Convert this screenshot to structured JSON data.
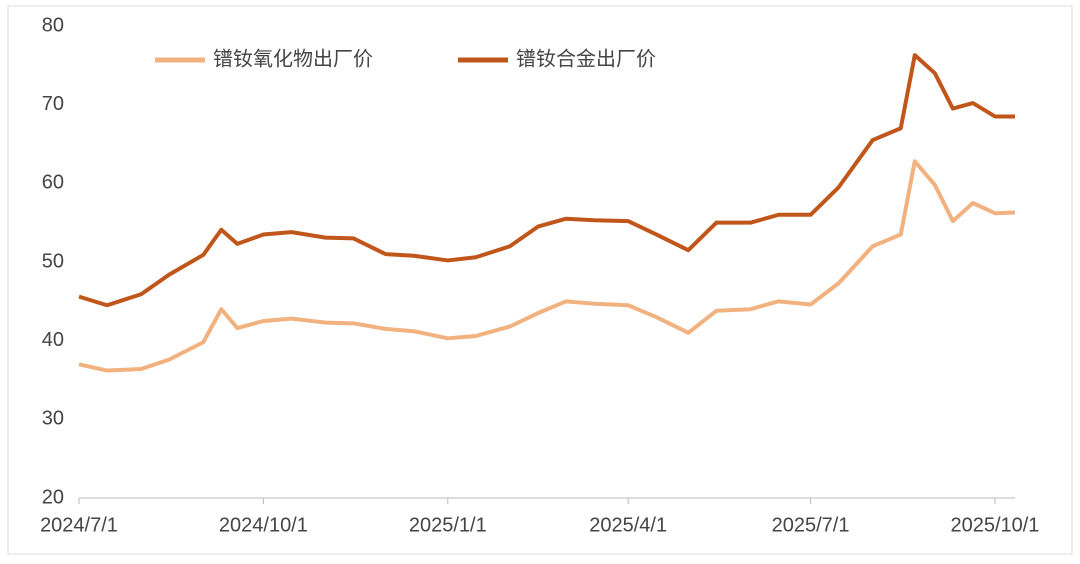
{
  "chart_data": {
    "type": "line",
    "x": [
      "2024/7/1",
      "2024/7/15",
      "2024/8/1",
      "2024/8/15",
      "2024/9/1",
      "2024/9/10",
      "2024/9/18",
      "2024/10/1",
      "2024/10/15",
      "2024/11/1",
      "2024/11/15",
      "2024/12/1",
      "2024/12/15",
      "2025/1/1",
      "2025/1/15",
      "2025/2/1",
      "2025/2/15",
      "2025/3/1",
      "2025/3/15",
      "2025/4/1",
      "2025/4/15",
      "2025/5/1",
      "2025/5/15",
      "2025/6/1",
      "2025/6/15",
      "2025/7/1",
      "2025/7/15",
      "2025/8/1",
      "2025/8/15",
      "2025/8/22",
      "2025/9/1",
      "2025/9/10",
      "2025/9/20",
      "2025/10/1",
      "2025/10/11"
    ],
    "series": [
      {
        "name": "镨钕氧化物出厂价",
        "color": "#f2b27f",
        "values": [
          37,
          36.2,
          36.4,
          37.6,
          39.8,
          44,
          41.6,
          42.5,
          42.8,
          42.3,
          42.2,
          41.5,
          41.2,
          40.3,
          40.6,
          41.8,
          43.5,
          45,
          44.7,
          44.5,
          43,
          41,
          43.8,
          44,
          45,
          44.6,
          47.3,
          52,
          53.5,
          62.8,
          59.8,
          55.2,
          57.5,
          56.2,
          56.3
        ]
      },
      {
        "name": "镨钕合金出厂价",
        "color": "#c0561a",
        "values": [
          45.6,
          44.5,
          45.9,
          48.4,
          50.9,
          54.1,
          52.3,
          53.5,
          53.8,
          53.1,
          53,
          51,
          50.8,
          50.2,
          50.6,
          52,
          54.5,
          55.5,
          55.3,
          55.2,
          53.5,
          51.5,
          55,
          55,
          56,
          56,
          59.5,
          65.5,
          67,
          76.3,
          74,
          69.5,
          70.2,
          68.5,
          68.5
        ]
      }
    ],
    "xlim": [
      "2024/7/1",
      "2025/10/11"
    ],
    "xticks": [
      "2024/7/1",
      "2024/10/1",
      "2025/1/1",
      "2025/4/1",
      "2025/7/1",
      "2025/10/1"
    ],
    "ylim": [
      20,
      80
    ],
    "yticks": [
      20,
      30,
      40,
      50,
      60,
      70,
      80
    ],
    "legend": "top"
  }
}
